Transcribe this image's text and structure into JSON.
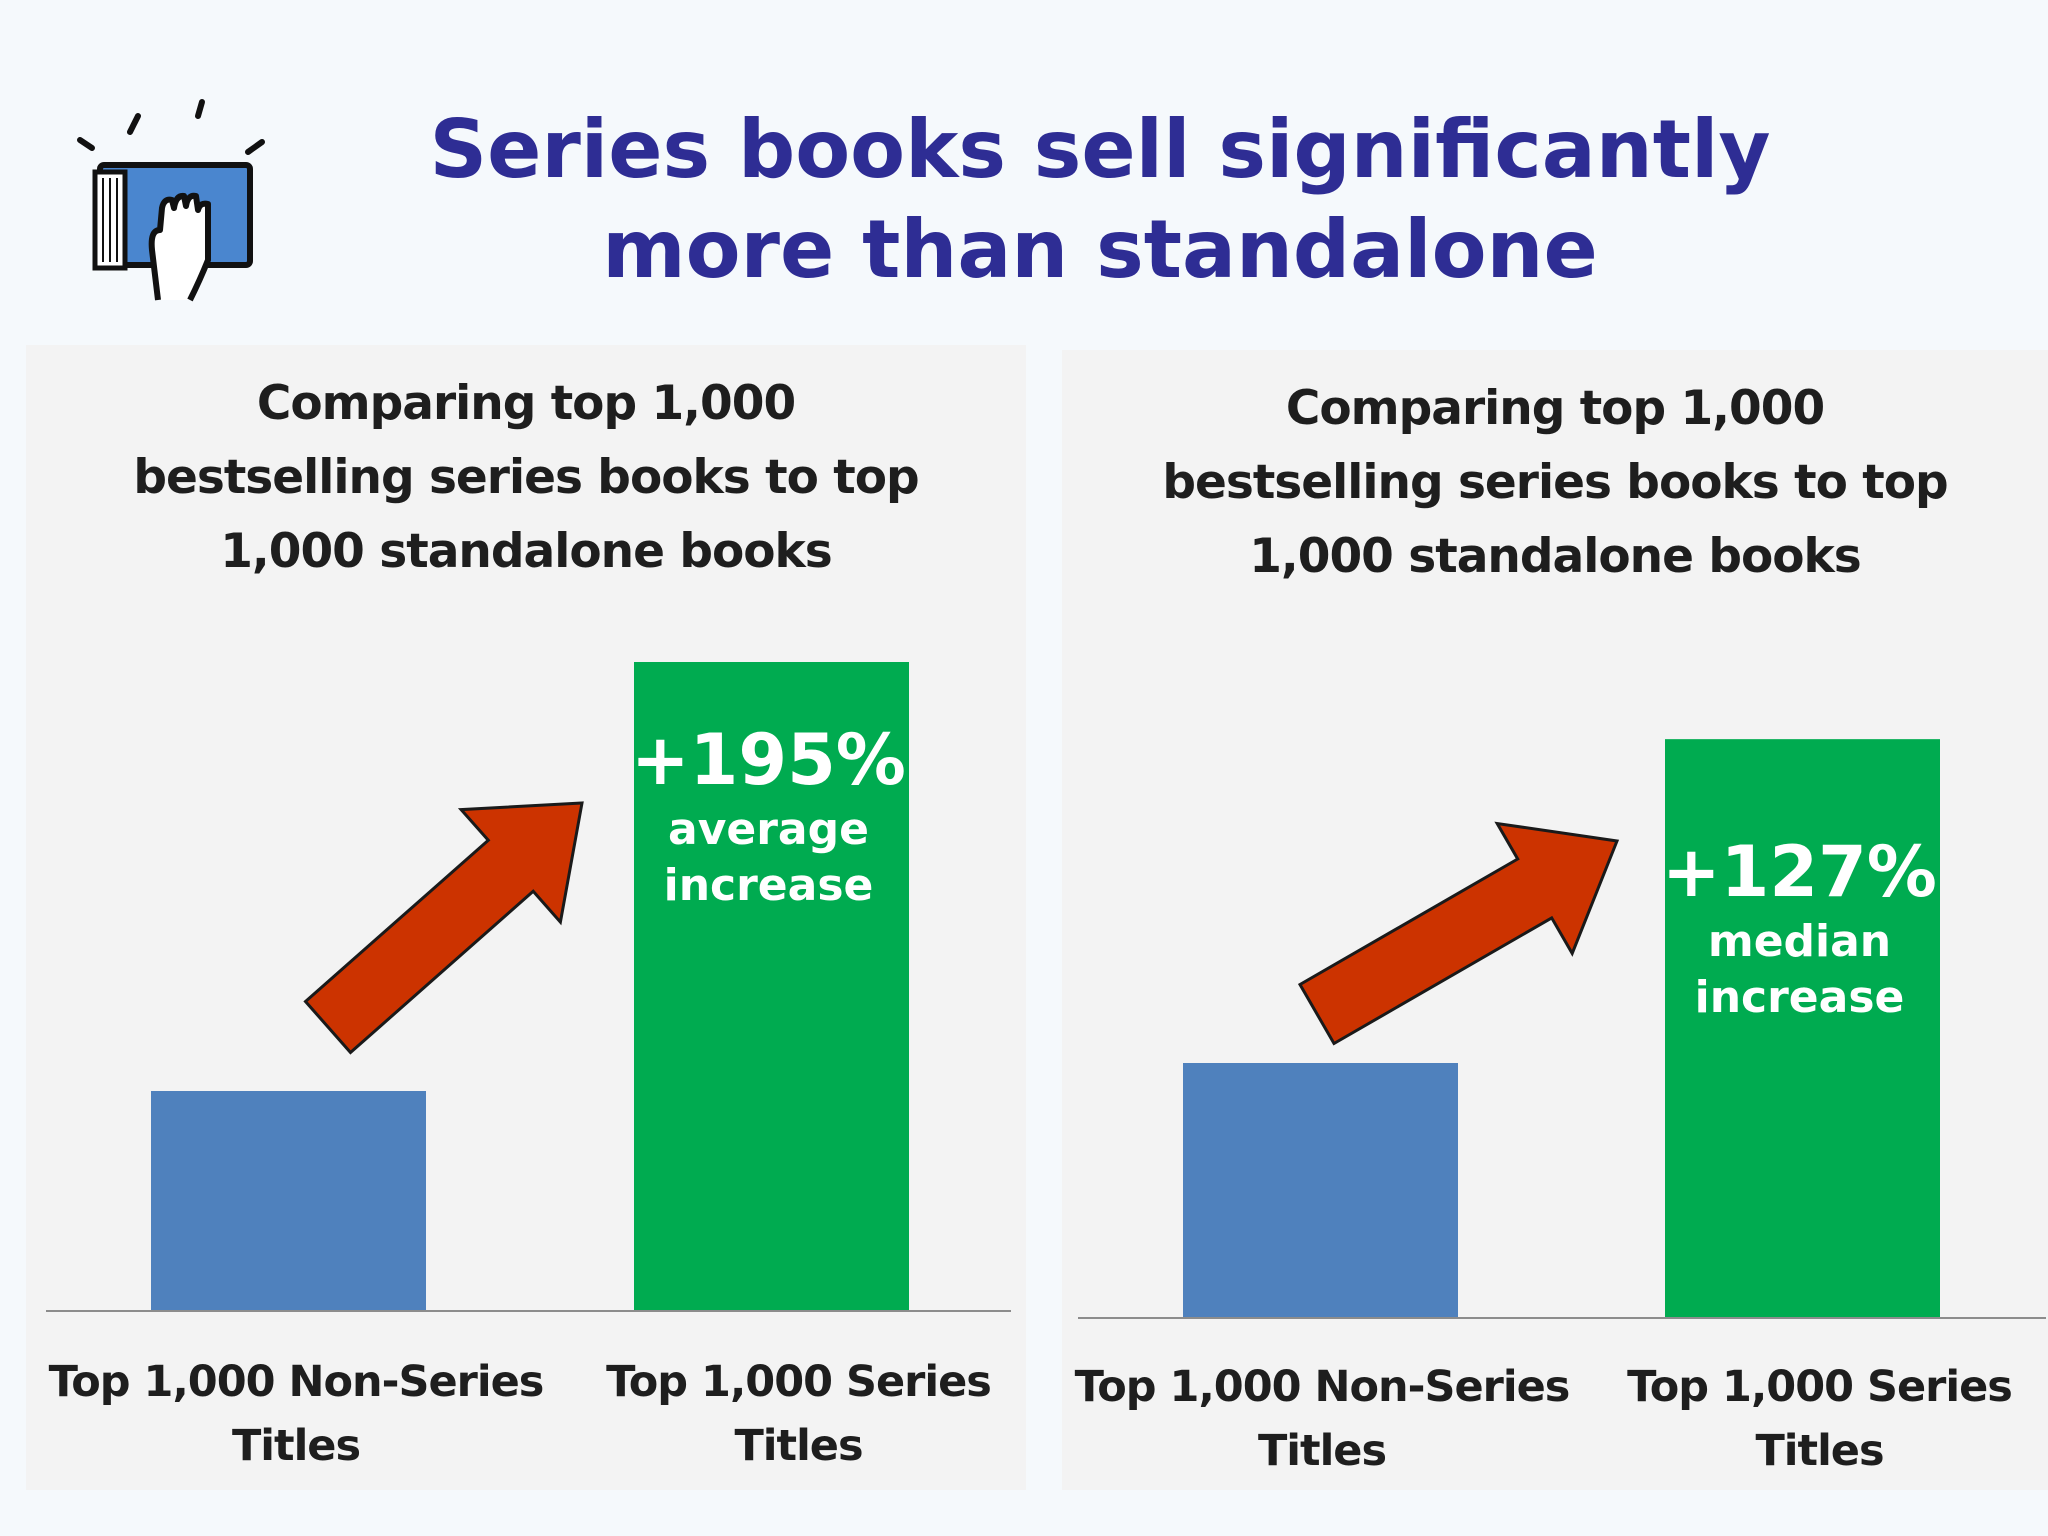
{
  "slide": {
    "title_lines": [
      "Series books sell significantly",
      "more than standalone"
    ],
    "icon": "book-hand-icon"
  },
  "chart_data": [
    {
      "type": "bar",
      "title_lines": [
        "Comparing top 1,000",
        "bestselling series books to top",
        "1,000 standalone books"
      ],
      "categories": [
        [
          "Top 1,000 Non-Series",
          "Titles"
        ],
        [
          "Top 1,000 Series",
          "Titles"
        ]
      ],
      "values": [
        1,
        2.95
      ],
      "colors": [
        "#4f81bd",
        "#00ab50"
      ],
      "annotation": {
        "value": "+195%",
        "lines": [
          "average",
          "increase"
        ]
      },
      "arrow_icon": "red-up-arrow-icon",
      "grid": false,
      "legend": "none"
    },
    {
      "type": "bar",
      "title_lines": [
        "Comparing top 1,000",
        "bestselling series books to top",
        "1,000 standalone books"
      ],
      "categories": [
        [
          "Top 1,000 Non-Series",
          "Titles"
        ],
        [
          "Top 1,000 Series",
          "Titles"
        ]
      ],
      "values": [
        1,
        2.27
      ],
      "colors": [
        "#4f81bd",
        "#00ab50"
      ],
      "annotation": {
        "value": "+127%",
        "lines": [
          "median",
          "increase"
        ]
      },
      "arrow_icon": "red-up-arrow-icon",
      "grid": false,
      "legend": "none"
    }
  ]
}
